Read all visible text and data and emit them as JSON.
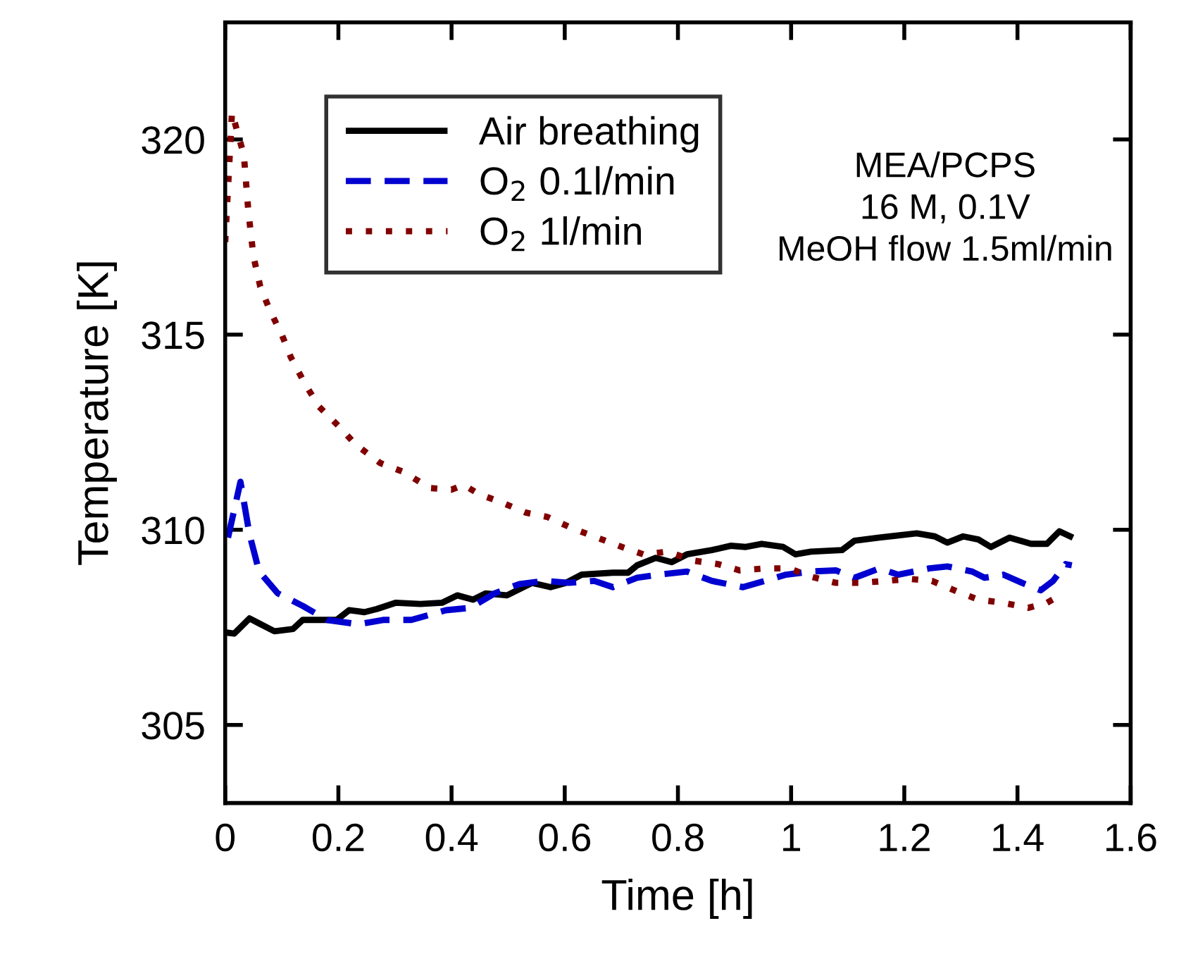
{
  "chart_data": {
    "type": "line",
    "xlabel": "Time [h]",
    "ylabel": "Temperature [K]",
    "xlim": [
      0,
      1.6
    ],
    "xticks": [
      0,
      0.2,
      0.4,
      0.6,
      0.8,
      1,
      1.2,
      1.4,
      1.6
    ],
    "ylim": [
      303,
      323
    ],
    "yticks": [
      305,
      310,
      315,
      320
    ],
    "grid": false,
    "legend": "top left",
    "annotations": [
      "MEA/PCPS\n16 M, 0.1V\nMeOH flow 1.5ml/min"
    ],
    "series": [
      {
        "name": "Air breathing",
        "color": "#000000",
        "line_style": "solid",
        "x": [
          0,
          0.016,
          0.043,
          0.06,
          0.087,
          0.12,
          0.137,
          0.175,
          0.197,
          0.219,
          0.246,
          0.268,
          0.301,
          0.345,
          0.383,
          0.41,
          0.438,
          0.46,
          0.498,
          0.542,
          0.575,
          0.602,
          0.63,
          0.685,
          0.712,
          0.728,
          0.761,
          0.789,
          0.816,
          0.86,
          0.893,
          0.92,
          0.948,
          0.986,
          1.008,
          1.035,
          1.09,
          1.112,
          1.156,
          1.222,
          1.254,
          1.276,
          1.304,
          1.331,
          1.353,
          1.386,
          1.424,
          1.452,
          1.474,
          1.498
        ],
        "values": [
          307.37,
          307.34,
          307.73,
          307.6,
          307.4,
          307.46,
          307.69,
          307.69,
          307.69,
          307.94,
          307.89,
          307.97,
          308.13,
          308.1,
          308.13,
          308.32,
          308.21,
          308.37,
          308.32,
          308.64,
          308.53,
          308.64,
          308.85,
          308.9,
          308.9,
          309.09,
          309.28,
          309.17,
          309.37,
          309.48,
          309.59,
          309.56,
          309.64,
          309.56,
          309.37,
          309.44,
          309.48,
          309.72,
          309.8,
          309.91,
          309.83,
          309.67,
          309.83,
          309.75,
          309.56,
          309.8,
          309.64,
          309.64,
          309.96,
          309.8
        ]
      },
      {
        "name": "O$_{2}$ 0.1l/min",
        "color": "#0000d0",
        "line_style": "dashed",
        "x": [
          0.005,
          0.027,
          0.043,
          0.06,
          0.093,
          0.137,
          0.18,
          0.235,
          0.279,
          0.329,
          0.39,
          0.433,
          0.476,
          0.52,
          0.564,
          0.608,
          0.652,
          0.685,
          0.728,
          0.767,
          0.816,
          0.86,
          0.915,
          0.953,
          0.991,
          1.035,
          1.079,
          1.112,
          1.156,
          1.189,
          1.244,
          1.276,
          1.32,
          1.342,
          1.375,
          1.408,
          1.441,
          1.463,
          1.485,
          1.496
        ],
        "values": [
          309.8,
          311.23,
          309.88,
          308.93,
          308.37,
          308.05,
          307.69,
          307.58,
          307.69,
          307.69,
          307.94,
          308.0,
          308.37,
          308.61,
          308.69,
          308.64,
          308.69,
          308.53,
          308.77,
          308.85,
          308.93,
          308.69,
          308.53,
          308.69,
          308.85,
          308.93,
          308.96,
          308.77,
          309.01,
          308.85,
          309.01,
          309.06,
          308.93,
          308.77,
          308.85,
          308.64,
          308.45,
          308.69,
          309.12,
          309.09
        ]
      },
      {
        "name": "O$_{2}$ 1l/min",
        "color": "#800000",
        "line_style": "dotted",
        "x": [
          0,
          0.012,
          0.033,
          0.041,
          0.05,
          0.062,
          0.079,
          0.1,
          0.116,
          0.141,
          0.166,
          0.203,
          0.23,
          0.274,
          0.317,
          0.361,
          0.4,
          0.421,
          0.449,
          0.487,
          0.531,
          0.569,
          0.613,
          0.657,
          0.701,
          0.739,
          0.783,
          0.827,
          0.871,
          0.909,
          0.953,
          0.997,
          1.035,
          1.079,
          1.123,
          1.167,
          1.21,
          1.249,
          1.293,
          1.331,
          1.375,
          1.419,
          1.452,
          1.468
        ],
        "values": [
          317.37,
          320.69,
          319.6,
          318.15,
          317.0,
          316.23,
          315.62,
          315.0,
          314.42,
          313.74,
          313.15,
          312.62,
          312.19,
          311.71,
          311.47,
          311.07,
          311.03,
          311.15,
          310.91,
          310.71,
          310.44,
          310.33,
          310.04,
          309.8,
          309.56,
          309.37,
          309.44,
          309.21,
          309.12,
          308.96,
          309.01,
          309.01,
          308.8,
          308.64,
          308.64,
          308.69,
          308.74,
          308.69,
          308.42,
          308.21,
          308.13,
          308.0,
          308.13,
          308.26
        ]
      }
    ]
  }
}
